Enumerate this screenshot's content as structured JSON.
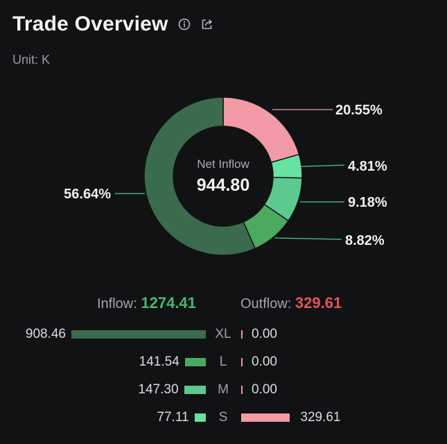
{
  "header": {
    "title": "Trade Overview",
    "info_icon": "info-circle-icon",
    "share_icon": "share-icon"
  },
  "unit_label": "Unit: K",
  "colors": {
    "xl_in": "#3b6b4d",
    "l_in": "#4caa5e",
    "m_in": "#5cc98f",
    "s_in": "#66e3a3",
    "out": "#f29aa5",
    "leader_green": "#4fc98a",
    "leader_pink": "#f29aa5"
  },
  "chart_data": [
    {
      "type": "pie",
      "title": "",
      "center_label": "Net Inflow",
      "center_value": "944.80",
      "slices": [
        {
          "percent": 20.55,
          "label": "20.55%",
          "color": "#f29aa5"
        },
        {
          "percent": 4.81,
          "label": "4.81%",
          "color": "#66e3a3"
        },
        {
          "percent": 9.18,
          "label": "9.18%",
          "color": "#5cc98f"
        },
        {
          "percent": 8.82,
          "label": "8.82%",
          "color": "#4caa5e"
        },
        {
          "percent": 56.64,
          "label": "56.64%",
          "color": "#3b6b4d"
        }
      ]
    },
    {
      "type": "bar",
      "inflow_label": "Inflow:",
      "inflow_total": "1274.41",
      "outflow_label": "Outflow:",
      "outflow_total": "329.61",
      "categories": [
        "XL",
        "L",
        "M",
        "S"
      ],
      "series": [
        {
          "name": "Inflow",
          "values": [
            908.46,
            141.54,
            147.3,
            77.11
          ],
          "labels": [
            "908.46",
            "141.54",
            "147.30",
            "77.11"
          ]
        },
        {
          "name": "Outflow",
          "values": [
            0.0,
            0.0,
            0.0,
            329.61
          ],
          "labels": [
            "0.00",
            "0.00",
            "0.00",
            "329.61"
          ]
        }
      ]
    }
  ]
}
